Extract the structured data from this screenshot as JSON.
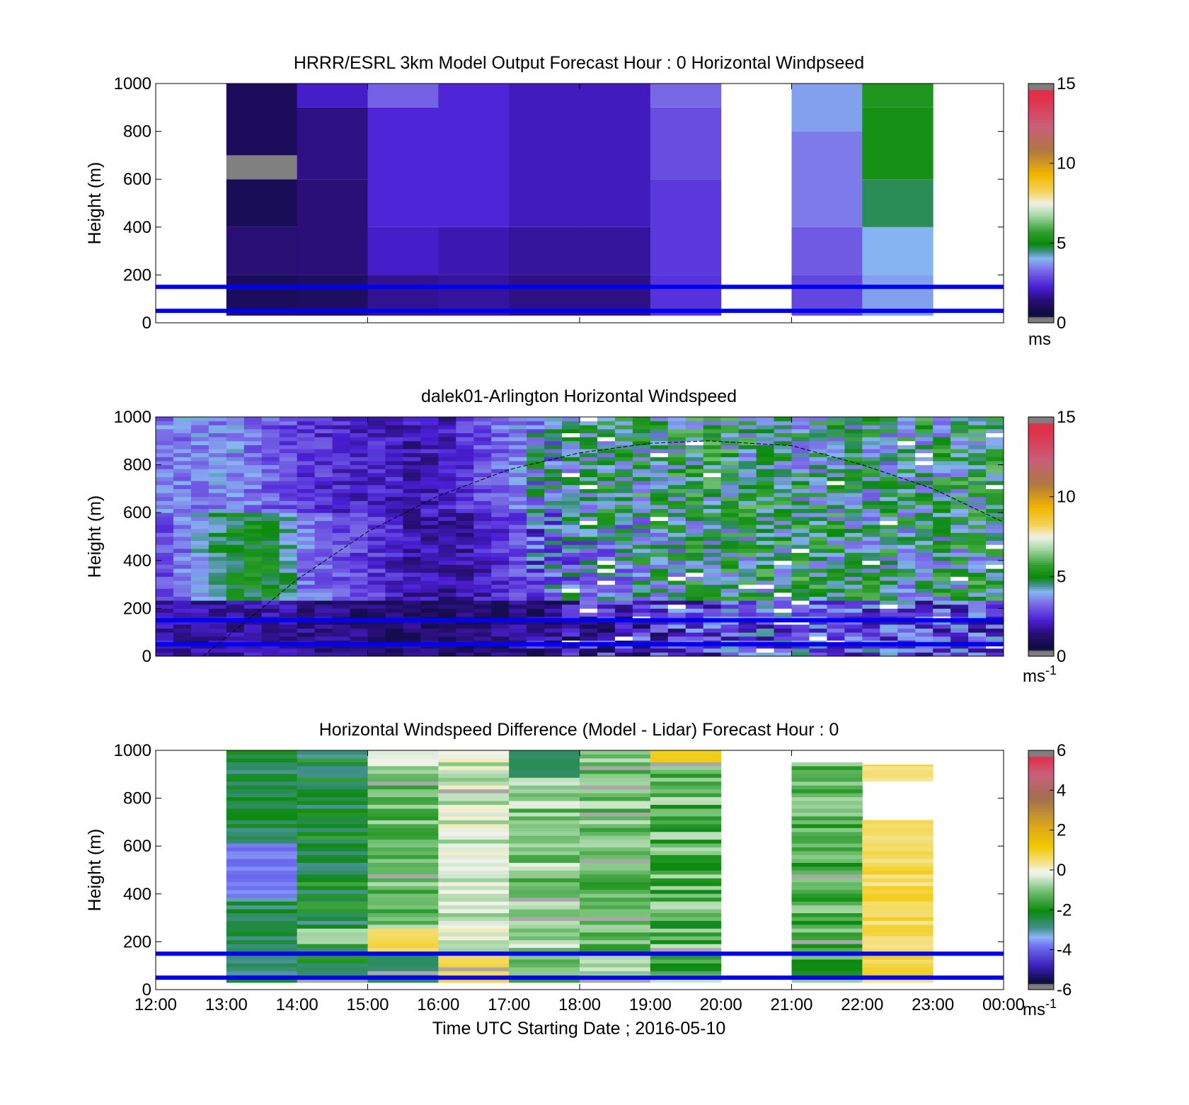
{
  "figure": {
    "xlabel": "Time UTC  Starting Date ; 2016-05-10",
    "x_ticks": [
      "12:00",
      "13:00",
      "14:00",
      "15:00",
      "16:00",
      "17:00",
      "18:00",
      "19:00",
      "20:00",
      "21:00",
      "22:00",
      "23:00",
      "00:00"
    ]
  },
  "chart_data": [
    {
      "type": "heatmap",
      "title": "HRRR/ESRL 3km Model Output   Forecast Hour : 0 Horizontal Windpseed",
      "ylabel": "Height (m)",
      "xlim": [
        "12:00",
        "00:00"
      ],
      "ylim": [
        0,
        1000
      ],
      "y_ticks": [
        "0",
        "200",
        "400",
        "600",
        "800",
        "1000"
      ],
      "colorbar": {
        "min": 0,
        "max": 15,
        "ticks": [
          "0",
          "5",
          "10",
          "15"
        ],
        "unit": "ms",
        "unit_sup": ""
      },
      "hlines_m": [
        50,
        150
      ],
      "columns": [
        {
          "t": 13,
          "levels": [
            {
              "z": [
                30,
                50
              ],
              "v": 0.8
            },
            {
              "z": [
                50,
                200
              ],
              "v": 0.6
            },
            {
              "z": [
                200,
                400
              ],
              "v": 1.0
            },
            {
              "z": [
                400,
                600
              ],
              "v": 0.5
            },
            {
              "z": [
                600,
                700
              ],
              "v": null,
              "mask": true
            },
            {
              "z": [
                700,
                1000
              ],
              "v": 0.6
            }
          ]
        },
        {
          "t": 14,
          "levels": [
            {
              "z": [
                30,
                200
              ],
              "v": 0.7
            },
            {
              "z": [
                200,
                600
              ],
              "v": 1.1
            },
            {
              "z": [
                600,
                900
              ],
              "v": 1.2
            },
            {
              "z": [
                900,
                1000
              ],
              "v": 1.8
            }
          ]
        },
        {
          "t": 15,
          "levels": [
            {
              "z": [
                30,
                200
              ],
              "v": 1.3
            },
            {
              "z": [
                200,
                400
              ],
              "v": 1.8
            },
            {
              "z": [
                400,
                900
              ],
              "v": 2.0
            },
            {
              "z": [
                900,
                1000
              ],
              "v": 2.9
            }
          ]
        },
        {
          "t": 16,
          "levels": [
            {
              "z": [
                30,
                200
              ],
              "v": 1.4
            },
            {
              "z": [
                200,
                400
              ],
              "v": 1.6
            },
            {
              "z": [
                400,
                1000
              ],
              "v": 2.0
            }
          ]
        },
        {
          "t": 17,
          "levels": [
            {
              "z": [
                30,
                200
              ],
              "v": 1.2
            },
            {
              "z": [
                200,
                400
              ],
              "v": 1.4
            },
            {
              "z": [
                400,
                1000
              ],
              "v": 1.7
            }
          ]
        },
        {
          "t": 18,
          "levels": [
            {
              "z": [
                30,
                200
              ],
              "v": 1.2
            },
            {
              "z": [
                200,
                400
              ],
              "v": 1.4
            },
            {
              "z": [
                400,
                1000
              ],
              "v": 1.7
            }
          ]
        },
        {
          "t": 19,
          "levels": [
            {
              "z": [
                30,
                200
              ],
              "v": 2.2
            },
            {
              "z": [
                200,
                600
              ],
              "v": 2.3
            },
            {
              "z": [
                600,
                900
              ],
              "v": 2.6
            },
            {
              "z": [
                900,
                1000
              ],
              "v": 3.0
            }
          ]
        },
        {
          "t": 21,
          "levels": [
            {
              "z": [
                30,
                200
              ],
              "v": 2.5
            },
            {
              "z": [
                200,
                400
              ],
              "v": 2.8
            },
            {
              "z": [
                400,
                800
              ],
              "v": 3.2
            },
            {
              "z": [
                800,
                1000
              ],
              "v": 3.6
            }
          ]
        },
        {
          "t": 22,
          "levels": [
            {
              "z": [
                30,
                200
              ],
              "v": 3.6
            },
            {
              "z": [
                200,
                400
              ],
              "v": 3.8
            },
            {
              "z": [
                400,
                600
              ],
              "v": 4.5
            },
            {
              "z": [
                600,
                900
              ],
              "v": 5.0
            },
            {
              "z": [
                900,
                1000
              ],
              "v": 5.2
            }
          ]
        }
      ]
    },
    {
      "type": "heatmap",
      "title": "dalek01-Arlington  Horizontal Windspeed",
      "ylabel": "Height (m)",
      "xlim": [
        "12:00",
        "00:00"
      ],
      "ylim": [
        0,
        1000
      ],
      "y_ticks": [
        "0",
        "200",
        "400",
        "600",
        "800",
        "1000"
      ],
      "colorbar": {
        "min": 0,
        "max": 15,
        "ticks": [
          "0",
          "5",
          "10",
          "15"
        ],
        "unit": "ms",
        "unit_sup": "-1"
      },
      "hlines_m": [
        50,
        150
      ],
      "boundary_layer_curve": {
        "description_in_data_units": "parabola from (12:40, 0 m) peaking near (19:50, 900 m) to (00:00, 560 m)",
        "points": [
          [
            12.67,
            0
          ],
          [
            14,
            320
          ],
          [
            15,
            520
          ],
          [
            16,
            670
          ],
          [
            17,
            780
          ],
          [
            18,
            850
          ],
          [
            19,
            890
          ],
          [
            19.83,
            900
          ],
          [
            21,
            880
          ],
          [
            22,
            800
          ],
          [
            23,
            700
          ],
          [
            24,
            560
          ]
        ]
      },
      "profile": [
        {
          "t": 12.0,
          "low": 1.5,
          "mid": 2.6,
          "high": 3.2
        },
        {
          "t": 13.0,
          "low": 1.4,
          "mid": 4.8,
          "high": 3.4
        },
        {
          "t": 13.5,
          "low": 1.6,
          "mid": 5.0,
          "high": 2.8
        },
        {
          "t": 14.0,
          "low": 1.2,
          "mid": 3.2,
          "high": 2.3
        },
        {
          "t": 14.5,
          "low": 1.0,
          "mid": 2.6,
          "high": 2.0
        },
        {
          "t": 15.0,
          "low": 0.9,
          "mid": 2.3,
          "high": 2.0
        },
        {
          "t": 15.5,
          "low": 0.8,
          "mid": 1.6,
          "high": 1.6
        },
        {
          "t": 16.0,
          "low": 0.7,
          "mid": 1.4,
          "high": 1.8
        },
        {
          "t": 16.5,
          "low": 0.9,
          "mid": 1.8,
          "high": 2.6
        },
        {
          "t": 17.0,
          "low": 1.2,
          "mid": 2.6,
          "high": 3.4
        },
        {
          "t": 18.0,
          "low": 1.6,
          "mid": 3.6,
          "high": 4.2
        },
        {
          "t": 19.0,
          "low": 2.2,
          "mid": 4.2,
          "high": 4.6
        },
        {
          "t": 20.0,
          "low": 2.6,
          "mid": 4.5,
          "high": 4.6
        },
        {
          "t": 21.0,
          "low": 2.9,
          "mid": 4.6,
          "high": 4.4
        },
        {
          "t": 22.0,
          "low": 2.8,
          "mid": 4.3,
          "high": 4.2
        },
        {
          "t": 23.0,
          "low": 2.6,
          "mid": 4.4,
          "high": 4.5
        },
        {
          "t": 24.0,
          "low": 2.4,
          "mid": 4.6,
          "high": 4.8
        }
      ]
    },
    {
      "type": "heatmap",
      "title": "Horizontal Windspeed Difference (Model - Lidar) Forecast Hour : 0",
      "ylabel": "Height (m)",
      "xlim": [
        "12:00",
        "00:00"
      ],
      "ylim": [
        0,
        1000
      ],
      "y_ticks": [
        "0",
        "200",
        "400",
        "600",
        "800",
        "1000"
      ],
      "colorbar": {
        "min": -6,
        "max": 6,
        "ticks": [
          "-6",
          "-4",
          "-2",
          "0",
          "2",
          "4",
          "6"
        ],
        "unit": "ms",
        "unit_sup": "-1"
      },
      "hlines_m": [
        50,
        150
      ],
      "columns": [
        {
          "t": 13,
          "mean": -2.6,
          "spread": 0.6,
          "levels": [
            {
              "z": [
                600,
                620
              ],
              "v": -3.0
            },
            {
              "z": [
                380,
                600
              ],
              "v": -4.0
            },
            {
              "z": [
                360,
                380
              ],
              "v": -3.4
            }
          ]
        },
        {
          "t": 14,
          "mean": -2.4,
          "spread": 0.8,
          "levels": [
            {
              "z": [
                180,
                250
              ],
              "v": -0.6
            },
            {
              "z": [
                30,
                100
              ],
              "v": -2.8
            }
          ]
        },
        {
          "t": 15,
          "mean": -1.2,
          "spread": 0.7,
          "levels": [
            {
              "z": [
                920,
                1000
              ],
              "v": -0.2
            },
            {
              "z": [
                150,
                250
              ],
              "v": 0.8
            },
            {
              "z": [
                30,
                130
              ],
              "v": -2.9
            }
          ]
        },
        {
          "t": 16,
          "mean": -0.4,
          "spread": 0.6,
          "levels": [
            {
              "z": [
                30,
                150
              ],
              "v": 0.7
            }
          ]
        },
        {
          "t": 17,
          "mean": -1.0,
          "spread": 0.8,
          "levels": [
            {
              "z": [
                880,
                1000
              ],
              "v": -2.7
            }
          ]
        },
        {
          "t": 18,
          "mean": -1.2,
          "spread": 0.8,
          "levels": []
        },
        {
          "t": 19,
          "mean": -1.4,
          "spread": 1.0,
          "levels": [
            {
              "z": [
                950,
                1000
              ],
              "v": 1.0
            }
          ]
        },
        {
          "t": 21,
          "mean": -1.5,
          "spread": 0.8,
          "top": 950,
          "levels": []
        },
        {
          "t": 22,
          "mean": 0.7,
          "spread": 0.4,
          "top": 940,
          "levels": [
            {
              "z": [
                700,
                870
              ],
              "v": null,
              "blank": true
            }
          ]
        }
      ]
    }
  ]
}
